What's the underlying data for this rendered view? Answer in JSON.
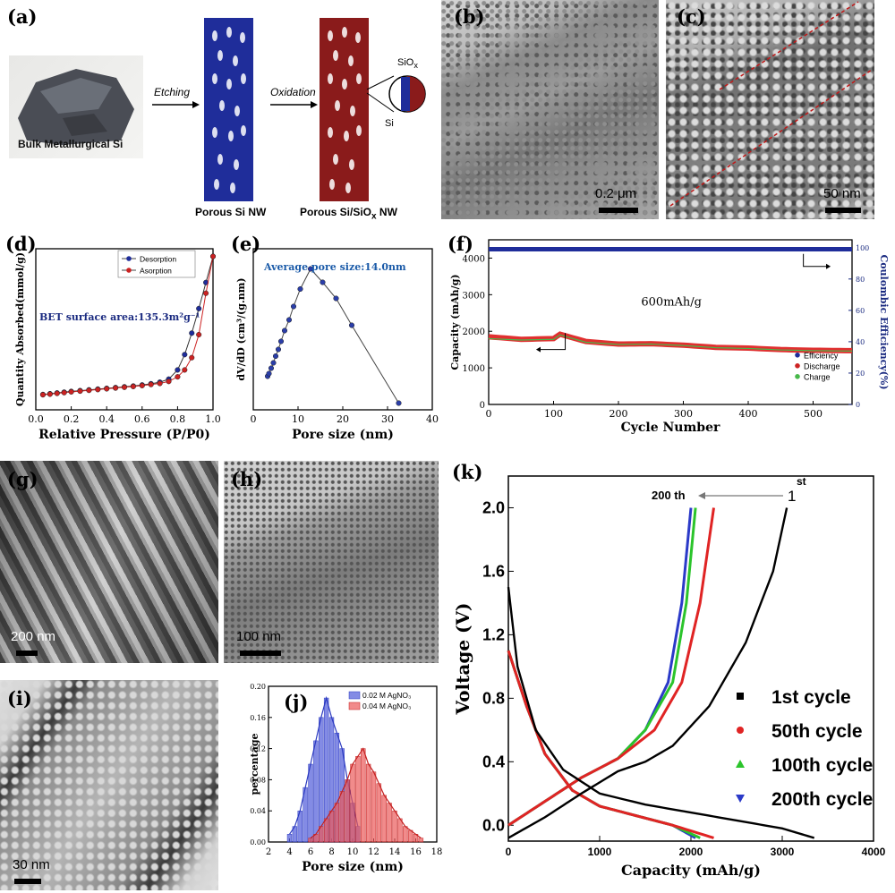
{
  "panels": {
    "a": {
      "label": "(a)",
      "bulk": "Bulk Metallurgical Si",
      "etching": "Etching",
      "oxidation": "Oxidation",
      "porous_si": "Porous Si NW",
      "porous_siox_pre": "Porous Si/SiO",
      "porous_siox_sub": "x",
      "porous_siox_post": " NW",
      "siox": "SiO",
      "siox_sub": "x",
      "si": "Si"
    },
    "b": {
      "label": "(b)",
      "scale": "0.2 μm"
    },
    "c": {
      "label": "(c)",
      "scale": "50 nm"
    },
    "d": {
      "label": "(d)"
    },
    "e": {
      "label": "(e)"
    },
    "f": {
      "label": "(f)"
    },
    "g": {
      "label": "(g)",
      "scale": "200 nm"
    },
    "h": {
      "label": "(h)",
      "scale": "100 nm"
    },
    "i": {
      "label": "(i)",
      "scale": "30 nm"
    },
    "j": {
      "label": "(j)"
    },
    "k": {
      "label": "(k)"
    }
  },
  "colors": {
    "blue": "#1f2d9a",
    "red": "#8a1b1b",
    "navy": "#1a2a80"
  },
  "chart_data": [
    {
      "id": "d",
      "type": "line",
      "xlabel": "Relative Pressure (P/P0)",
      "ylabel": "Quantity Absorbed(mmol/g)",
      "xlim": [
        0,
        1.0
      ],
      "xticks": [
        "0.0",
        "0.2",
        "0.4",
        "0.6",
        "0.8",
        "1.0"
      ],
      "annotation": "BET surface area:135.3m²g⁻¹",
      "legend": [
        "Desorption",
        "Asorption"
      ],
      "series": [
        {
          "name": "Desorption",
          "x": [
            0.04,
            0.08,
            0.12,
            0.16,
            0.2,
            0.25,
            0.3,
            0.35,
            0.4,
            0.45,
            0.5,
            0.55,
            0.6,
            0.65,
            0.7,
            0.75,
            0.8,
            0.84,
            0.88,
            0.92,
            0.96,
            1.0
          ],
          "y": [
            1.0,
            1.05,
            1.1,
            1.15,
            1.2,
            1.25,
            1.3,
            1.35,
            1.4,
            1.45,
            1.5,
            1.55,
            1.62,
            1.7,
            1.8,
            2.0,
            2.6,
            3.6,
            5.0,
            6.6,
            8.3,
            10.0
          ]
        },
        {
          "name": "Asorption",
          "x": [
            0.04,
            0.08,
            0.12,
            0.16,
            0.2,
            0.25,
            0.3,
            0.35,
            0.4,
            0.45,
            0.5,
            0.55,
            0.6,
            0.65,
            0.7,
            0.75,
            0.8,
            0.84,
            0.88,
            0.92,
            0.96,
            1.0
          ],
          "y": [
            0.98,
            1.02,
            1.07,
            1.12,
            1.17,
            1.22,
            1.27,
            1.32,
            1.37,
            1.42,
            1.47,
            1.52,
            1.58,
            1.65,
            1.72,
            1.85,
            2.15,
            2.6,
            3.4,
            4.9,
            7.6,
            10.0
          ]
        }
      ]
    },
    {
      "id": "e",
      "type": "line",
      "xlabel": "Pore size (nm)",
      "ylabel": "dV/dD (cm³/(g.nm)",
      "xlim": [
        0,
        40
      ],
      "xticks": [
        "0",
        "10",
        "20",
        "30",
        "40"
      ],
      "annotation": "Average pore size:14.0nm",
      "series": [
        {
          "x": [
            3.2,
            3.5,
            4.0,
            4.5,
            5.0,
            5.6,
            6.2,
            7.0,
            8.0,
            9.0,
            10.5,
            12.8,
            15.5,
            18.5,
            22.0,
            32.5
          ],
          "y": [
            0.2,
            0.22,
            0.26,
            0.3,
            0.35,
            0.4,
            0.46,
            0.54,
            0.62,
            0.72,
            0.85,
            1.0,
            0.9,
            0.78,
            0.58,
            0.0
          ]
        }
      ]
    },
    {
      "id": "f",
      "type": "scatter",
      "xlabel": "Cycle Number",
      "ylabel": "Capacity (mAh/g)",
      "y2label": "Coulombic Efficiency(%)",
      "xlim": [
        0,
        560
      ],
      "ylim": [
        0,
        4500
      ],
      "y2lim": [
        0,
        105
      ],
      "xticks": [
        "0",
        "100",
        "200",
        "300",
        "400",
        "500"
      ],
      "yticks": [
        "0",
        "1000",
        "2000",
        "3000",
        "4000"
      ],
      "y2ticks": [
        "0",
        "20",
        "40",
        "60",
        "80",
        "100"
      ],
      "annotation": "600mAh/g",
      "legend": [
        "Efficiency",
        "Discharge",
        "Charge"
      ],
      "series": [
        {
          "name": "Efficiency",
          "x": [
            0,
            560
          ],
          "y": [
            99,
            99
          ]
        },
        {
          "name": "Discharge",
          "x": [
            0,
            50,
            100,
            110,
            150,
            200,
            250,
            300,
            350,
            400,
            450,
            500,
            560
          ],
          "y": [
            1850,
            1780,
            1800,
            1920,
            1720,
            1650,
            1660,
            1620,
            1560,
            1540,
            1500,
            1480,
            1470
          ]
        },
        {
          "name": "Charge",
          "x": [
            0,
            50,
            100,
            110,
            150,
            200,
            250,
            300,
            350,
            400,
            450,
            500,
            560
          ],
          "y": [
            1800,
            1760,
            1780,
            1900,
            1700,
            1640,
            1650,
            1610,
            1550,
            1530,
            1490,
            1470,
            1460
          ]
        }
      ]
    },
    {
      "id": "j",
      "type": "bar",
      "xlabel": "Pore size (nm)",
      "ylabel": "percentage",
      "xlim": [
        2,
        18
      ],
      "ylim": [
        0,
        0.2
      ],
      "xticks": [
        "2",
        "4",
        "6",
        "8",
        "10",
        "12",
        "14",
        "16",
        "18"
      ],
      "yticks": [
        "0.00",
        "0.04",
        "0.08",
        "0.12",
        "0.16",
        "0.20"
      ],
      "legend": [
        "0.02 M AgNO₃",
        "0.04 M AgNO₃"
      ],
      "series": [
        {
          "name": "0.02 M AgNO₃",
          "x": [
            4,
            4.5,
            5,
            5.5,
            6,
            6.5,
            7,
            7.5,
            8,
            8.5,
            9,
            9.5,
            10,
            10.5
          ],
          "y": [
            0.01,
            0.02,
            0.04,
            0.07,
            0.1,
            0.13,
            0.16,
            0.185,
            0.16,
            0.14,
            0.12,
            0.08,
            0.05,
            0.02
          ]
        },
        {
          "name": "0.04 M AgNO₃",
          "x": [
            6,
            6.5,
            7,
            7.5,
            8,
            8.5,
            9,
            9.5,
            10,
            10.5,
            11,
            11.5,
            12,
            12.5,
            13,
            13.5,
            14,
            14.5,
            15,
            15.5,
            16,
            16.5
          ],
          "y": [
            0.005,
            0.01,
            0.02,
            0.03,
            0.04,
            0.05,
            0.065,
            0.08,
            0.1,
            0.11,
            0.12,
            0.1,
            0.09,
            0.075,
            0.06,
            0.05,
            0.04,
            0.03,
            0.02,
            0.015,
            0.01,
            0.005
          ]
        }
      ]
    },
    {
      "id": "k",
      "type": "line",
      "xlabel": "Capacity (mAh/g)",
      "ylabel": "Voltage (V)",
      "xlim": [
        0,
        4000
      ],
      "ylim": [
        -0.1,
        2.2
      ],
      "xticks": [
        "0",
        "1000",
        "2000",
        "3000",
        "4000"
      ],
      "yticks": [
        "0.0",
        "0.4",
        "0.8",
        "1.2",
        "1.6",
        "2.0"
      ],
      "annotation_start": "200 th",
      "annotation_end": "1",
      "annotation_end_sup": "st",
      "legend": [
        "1st   cycle",
        "50th  cycle",
        "100th cycle",
        "200th cycle"
      ],
      "series": [
        {
          "name": "1st   cycle",
          "discharge_x": [
            0,
            100,
            300,
            600,
            1000,
            1500,
            2000,
            2500,
            3000,
            3350
          ],
          "discharge_y": [
            1.5,
            1.0,
            0.6,
            0.35,
            0.2,
            0.13,
            0.08,
            0.03,
            -0.02,
            -0.08
          ],
          "charge_x": [
            0,
            400,
            800,
            1200,
            1500,
            1800,
            2200,
            2600,
            2900,
            3050
          ],
          "charge_y": [
            -0.08,
            0.05,
            0.2,
            0.34,
            0.4,
            0.5,
            0.75,
            1.15,
            1.6,
            2.0
          ]
        },
        {
          "name": "50th  cycle",
          "discharge_x": [
            0,
            200,
            400,
            700,
            1000,
            1400,
            1800,
            2250
          ],
          "discharge_y": [
            1.1,
            0.75,
            0.45,
            0.22,
            0.12,
            0.06,
            0.0,
            -0.08
          ],
          "charge_x": [
            0,
            400,
            800,
            1200,
            1600,
            1900,
            2100,
            2250
          ],
          "charge_y": [
            0.0,
            0.15,
            0.3,
            0.42,
            0.6,
            0.9,
            1.4,
            2.0
          ]
        },
        {
          "name": "100th cycle",
          "discharge_x": [
            0,
            200,
            400,
            700,
            1000,
            1400,
            1800,
            2100
          ],
          "discharge_y": [
            1.1,
            0.75,
            0.45,
            0.22,
            0.12,
            0.06,
            0.0,
            -0.08
          ],
          "charge_x": [
            0,
            400,
            800,
            1200,
            1500,
            1800,
            1950,
            2050
          ],
          "charge_y": [
            0.0,
            0.15,
            0.3,
            0.42,
            0.6,
            0.9,
            1.4,
            2.0
          ]
        },
        {
          "name": "200th cycle",
          "discharge_x": [
            0,
            200,
            400,
            700,
            1000,
            1400,
            1800,
            2050
          ],
          "discharge_y": [
            1.1,
            0.75,
            0.45,
            0.22,
            0.12,
            0.06,
            0.0,
            -0.08
          ],
          "charge_x": [
            0,
            400,
            800,
            1200,
            1500,
            1750,
            1900,
            2000
          ],
          "charge_y": [
            0.0,
            0.15,
            0.3,
            0.42,
            0.6,
            0.9,
            1.4,
            2.0
          ]
        }
      ]
    }
  ]
}
